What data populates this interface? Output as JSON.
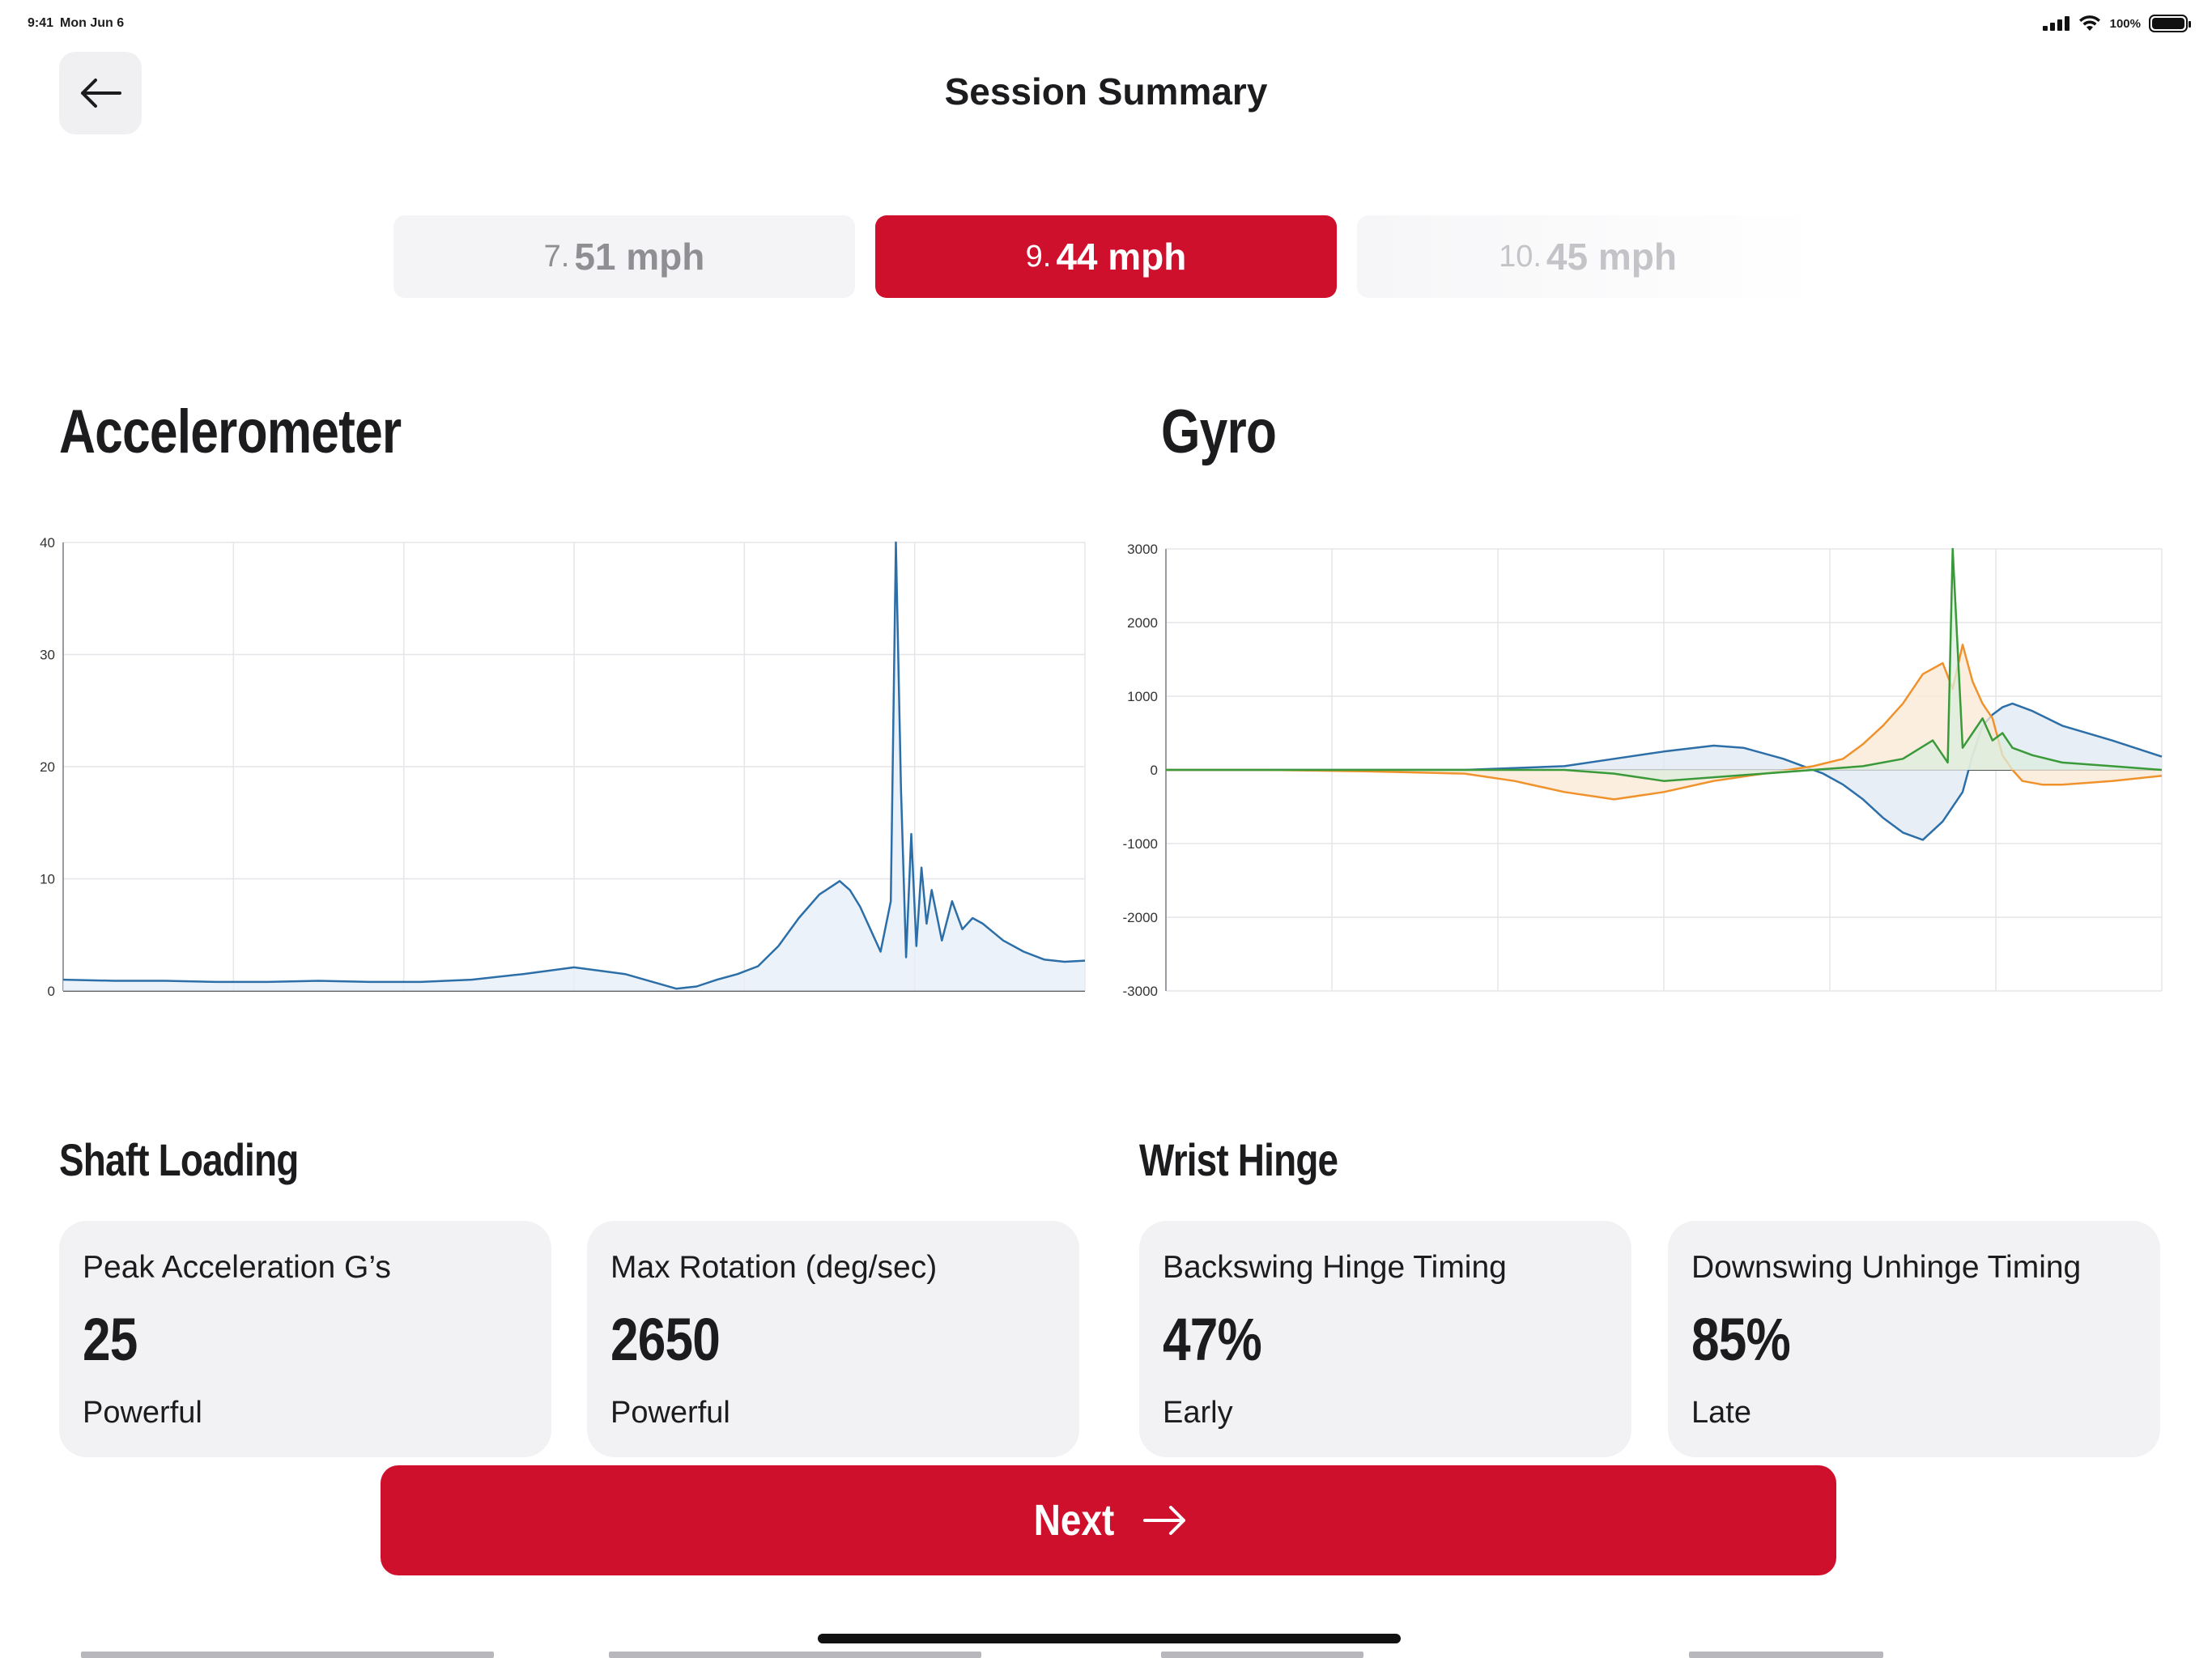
{
  "status_bar": {
    "time": "9:41",
    "date": "Mon Jun 6",
    "battery": "100%"
  },
  "header": {
    "title": "Session Summary"
  },
  "swing_tabs": [
    {
      "number": "7.",
      "speed": "51 mph",
      "state": "inactive"
    },
    {
      "number": "9.",
      "speed": "44 mph",
      "state": "active"
    },
    {
      "number": "10.",
      "speed": "45 mph",
      "state": "inactive"
    }
  ],
  "sections": {
    "accelerometer": "Accelerometer",
    "gyro": "Gyro",
    "shaft_loading": "Shaft Loading",
    "wrist_hinge": "Wrist Hinge"
  },
  "chart_data": [
    {
      "name": "accelerometer",
      "type": "area",
      "ylim": [
        0,
        40
      ],
      "yticks": [
        "0",
        "10",
        "20",
        "30",
        "40"
      ],
      "grid": true,
      "color": "#2c6fa8",
      "fill": "#e6eef7",
      "x": [
        0,
        5,
        10,
        15,
        20,
        25,
        30,
        35,
        40,
        45,
        50,
        55,
        60,
        62,
        64,
        66,
        68,
        70,
        72,
        74,
        76,
        77,
        78,
        79,
        80,
        81,
        81.5,
        82,
        82.5,
        83,
        83.5,
        84,
        84.5,
        85,
        86,
        87,
        88,
        89,
        90,
        92,
        94,
        96,
        98,
        100
      ],
      "values": [
        1.0,
        0.9,
        0.9,
        0.8,
        0.8,
        0.9,
        0.8,
        0.8,
        1.0,
        1.5,
        2.1,
        1.5,
        0.2,
        0.4,
        1.0,
        1.5,
        2.2,
        4.0,
        6.5,
        8.6,
        9.8,
        9.0,
        7.5,
        5.5,
        3.5,
        8.0,
        40,
        18,
        3.0,
        14,
        4.0,
        11,
        6.0,
        9.0,
        4.5,
        8.0,
        5.5,
        6.5,
        6.0,
        4.5,
        3.5,
        2.8,
        2.6,
        2.7
      ]
    },
    {
      "name": "gyro",
      "type": "area",
      "ylim": [
        -3000,
        3000
      ],
      "yticks": [
        "3000",
        "2000",
        "1000",
        "0",
        "-1000",
        "-2000",
        "-3000"
      ],
      "grid": true,
      "series": [
        {
          "color": "#2c6fa8",
          "fill": "#dfe8f2",
          "x": [
            0,
            10,
            20,
            30,
            40,
            45,
            50,
            55,
            58,
            62,
            66,
            68,
            70,
            72,
            74,
            76,
            78,
            80,
            81,
            82,
            83,
            84,
            85,
            87,
            90,
            95,
            100
          ],
          "values": [
            0,
            0,
            0,
            0,
            50,
            150,
            250,
            330,
            300,
            150,
            -50,
            -200,
            -400,
            -650,
            -850,
            -950,
            -700,
            -300,
            200,
            600,
            750,
            850,
            900,
            800,
            600,
            400,
            180
          ]
        },
        {
          "color": "#f0922c",
          "fill": "#fbe8d4",
          "x": [
            0,
            10,
            20,
            30,
            35,
            40,
            45,
            50,
            55,
            60,
            65,
            68,
            70,
            72,
            74,
            76,
            78,
            79,
            80,
            81,
            82,
            83,
            84,
            85,
            86,
            88,
            90,
            95,
            100
          ],
          "values": [
            0,
            0,
            -20,
            -50,
            -150,
            -300,
            -400,
            -300,
            -150,
            -50,
            50,
            150,
            350,
            600,
            900,
            1300,
            1450,
            1100,
            1700,
            1200,
            900,
            700,
            200,
            0,
            -150,
            -200,
            -200,
            -150,
            -80
          ]
        },
        {
          "color": "#3a9a3a",
          "fill": "#dceedd",
          "x": [
            0,
            10,
            20,
            30,
            40,
            45,
            50,
            55,
            60,
            65,
            70,
            74,
            77,
            78.5,
            79,
            80,
            81,
            82,
            83,
            84,
            85,
            87,
            90,
            95,
            100
          ],
          "values": [
            0,
            0,
            0,
            0,
            0,
            -50,
            -150,
            -100,
            -50,
            0,
            50,
            150,
            400,
            100,
            3000,
            300,
            500,
            700,
            400,
            500,
            300,
            200,
            100,
            50,
            0
          ]
        }
      ]
    }
  ],
  "shaft_loading": [
    {
      "label": "Peak Acceleration G’s",
      "value": "25",
      "rating": "Powerful"
    },
    {
      "label": "Max Rotation (deg/sec)",
      "value": "2650",
      "rating": "Powerful"
    }
  ],
  "wrist_hinge": [
    {
      "label": "Backswing Hinge Timing",
      "value": "47%",
      "rating": "Early"
    },
    {
      "label": "Downswing Unhinge Timing",
      "value": "85%",
      "rating": "Late"
    }
  ],
  "next_button": {
    "label": "Next"
  },
  "colors": {
    "brand_red": "#cf102d",
    "card_bg": "#f2f2f4"
  },
  "icons": {
    "back": "arrow-left-icon",
    "next": "arrow-right-icon"
  }
}
